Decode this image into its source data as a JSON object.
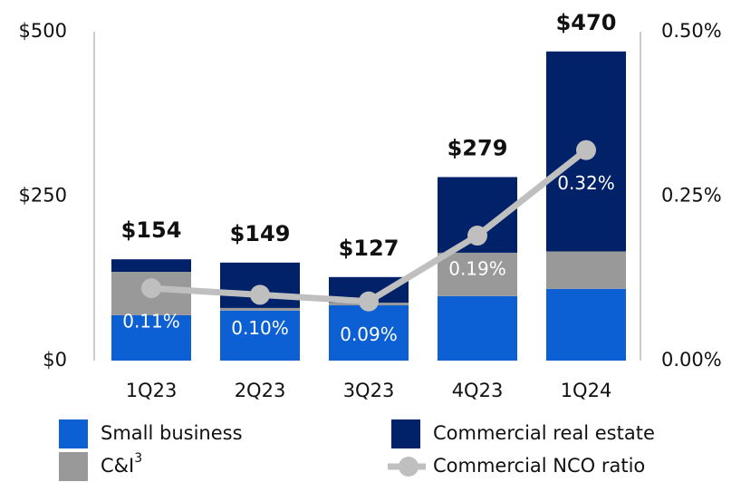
{
  "chart_data": {
    "type": "bar",
    "stacked": true,
    "categories": [
      "1Q23",
      "2Q23",
      "3Q23",
      "4Q23",
      "1Q24"
    ],
    "series": [
      {
        "name": "Small business",
        "color": "#0d5fd4",
        "values": [
          69,
          76,
          84,
          98,
          109
        ]
      },
      {
        "name": "C&I",
        "footnote": "3",
        "color": "#999999",
        "values": [
          66,
          4,
          4,
          66,
          57
        ]
      },
      {
        "name": "Commercial real estate",
        "color": "#012169",
        "values": [
          19,
          69,
          39,
          115,
          304
        ]
      },
      {
        "name": "Commercial NCO ratio",
        "type": "line",
        "axis": "y2",
        "color": "#bfbfbf",
        "values": [
          0.11,
          0.1,
          0.09,
          0.19,
          0.32
        ],
        "value_labels": [
          "0.11%",
          "0.10%",
          "0.09%",
          "0.19%",
          "0.32%"
        ]
      }
    ],
    "totals": [
      154,
      149,
      127,
      279,
      470
    ],
    "total_labels": [
      "$154",
      "$149",
      "$127",
      "$279",
      "$470"
    ],
    "ylim": [
      0,
      500
    ],
    "yticks": [
      {
        "value": 0,
        "label": "$0"
      },
      {
        "value": 250,
        "label": "$250"
      },
      {
        "value": 500,
        "label": "$500"
      }
    ],
    "y2lim": [
      0,
      0.5
    ],
    "y2ticks": [
      {
        "value": 0,
        "label": "0.00%"
      },
      {
        "value": 0.25,
        "label": "0.25%"
      },
      {
        "value": 0.5,
        "label": "0.50%"
      }
    ],
    "grid": false
  }
}
